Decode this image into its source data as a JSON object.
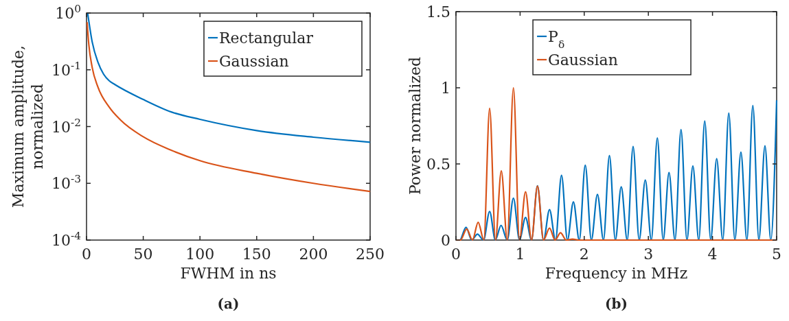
{
  "chart_data": [
    {
      "type": "line",
      "title": "(a)",
      "xlabel": "FWHM in ns",
      "ylabel": "Maximum amplitude, normalized",
      "log": "y",
      "xlim": [
        0,
        250
      ],
      "ylim": [
        0.0001,
        1
      ],
      "xticks": [
        0,
        50,
        100,
        150,
        200,
        250
      ],
      "yticks": [
        {
          "value": 0.0001,
          "label": "10$^{-4}$"
        },
        {
          "value": 0.001,
          "label": "10$^{-3}$"
        },
        {
          "value": 0.01,
          "label": "10$^{-2}$"
        },
        {
          "value": 0.1,
          "label": "10$^{-1}$"
        },
        {
          "value": 1,
          "label": "10$^{0}$"
        }
      ],
      "grid": false,
      "legend": "top right",
      "line_style": "solid",
      "marker": "none",
      "series": [
        {
          "name": "Rectangular",
          "color": "#0072bd",
          "x": [
            1,
            5,
            10,
            15,
            20,
            25,
            50,
            75,
            100,
            150,
            200,
            250
          ],
          "values": [
            1,
            0.31,
            0.137,
            0.084,
            0.064,
            0.055,
            0.03,
            0.018,
            0.0134,
            0.0085,
            0.0065,
            0.0053
          ]
        },
        {
          "name": "Gaussian",
          "color": "#d95319",
          "x": [
            0.5,
            2,
            5,
            10,
            20,
            30,
            50,
            75,
            100,
            150,
            200,
            250
          ],
          "values": [
            0.69,
            0.28,
            0.11,
            0.05,
            0.022,
            0.013,
            0.0066,
            0.0038,
            0.0025,
            0.0015,
            0.001,
            0.00072
          ]
        }
      ]
    },
    {
      "type": "line",
      "title": "(b)",
      "xlabel": "Frequency in MHz",
      "ylabel": "Power normalized",
      "xlim": [
        0,
        5
      ],
      "ylim": [
        0,
        1.5
      ],
      "xticks": [
        0,
        1,
        2,
        3,
        4,
        5
      ],
      "yticks": [
        0,
        0.5,
        1,
        1.5
      ],
      "grid": false,
      "legend": "top",
      "line_style": "solid",
      "marker": "none",
      "series": [
        {
          "name": "P$_{δ}$",
          "color": "#0072bd",
          "x": [
            0,
            0.06,
            0.157,
            0.246,
            0.335,
            0.43,
            0.525,
            0.614,
            0.703,
            0.8,
            0.896,
            0.99,
            1.085,
            1.178,
            1.271,
            1.365,
            1.459,
            1.552,
            1.646,
            1.738,
            1.831,
            1.923,
            2.016,
            2.111,
            2.206,
            2.3,
            2.393,
            2.485,
            2.577,
            2.67,
            2.762,
            2.857,
            2.952,
            3.046,
            3.14,
            3.231,
            3.322,
            3.415,
            3.509,
            3.601,
            3.694,
            3.786,
            3.879,
            3.972,
            4.065,
            4.16,
            4.254,
            4.348,
            4.443,
            4.536,
            4.629,
            4.723,
            4.818,
            4.909,
            5
          ],
          "values": [
            0,
            0,
            0.084,
            0,
            0.039,
            0,
            0.188,
            0,
            0.096,
            0,
            0.275,
            0,
            0.148,
            0,
            0.357,
            0,
            0.2,
            0,
            0.425,
            0,
            0.251,
            0,
            0.492,
            0,
            0.3,
            0,
            0.555,
            0,
            0.35,
            0,
            0.614,
            0,
            0.395,
            0,
            0.671,
            0,
            0.443,
            0,
            0.726,
            0,
            0.487,
            0,
            0.782,
            0,
            0.534,
            0,
            0.834,
            0,
            0.577,
            0,
            0.883,
            0,
            0.619,
            0,
            0.918
          ]
        },
        {
          "name": "Gaussian",
          "color": "#d95319",
          "x": [
            0,
            0.07,
            0.168,
            0.257,
            0.346,
            0.435,
            0.525,
            0.616,
            0.707,
            0.8,
            0.896,
            0.99,
            1.085,
            1.178,
            1.271,
            1.365,
            1.459,
            1.545,
            1.63,
            1.72,
            1.817,
            1.92,
            2.5,
            3,
            4,
            5
          ],
          "values": [
            0,
            0,
            0.073,
            0,
            0.117,
            0,
            0.865,
            0,
            0.454,
            0,
            1,
            0,
            0.317,
            0,
            0.354,
            0,
            0.078,
            0,
            0.048,
            0,
            0.006,
            0,
            0,
            0,
            0,
            0
          ]
        }
      ]
    }
  ]
}
